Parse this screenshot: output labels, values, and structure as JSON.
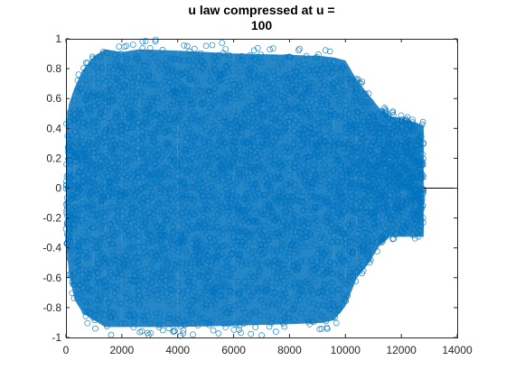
{
  "chart_data": {
    "type": "scatter",
    "title_lines": [
      "u law compressed at u =",
      "100"
    ],
    "xlabel": "",
    "ylabel": "",
    "xlim": [
      0,
      14000
    ],
    "ylim": [
      -1,
      1
    ],
    "xticks": [
      0,
      2000,
      4000,
      6000,
      8000,
      10000,
      12000,
      14000
    ],
    "xtick_labels": [
      "0",
      "2000",
      "4000",
      "6000",
      "8000",
      "10000",
      "12000",
      "14000"
    ],
    "yticks": [
      -1,
      -0.8,
      -0.6,
      -0.4,
      -0.2,
      0,
      0.2,
      0.4,
      0.6,
      0.8,
      1
    ],
    "ytick_labels": [
      "-1",
      "-0.8",
      "-0.6",
      "-0.4",
      "-0.2",
      "0",
      "0.2",
      "0.4",
      "0.6",
      "0.8",
      "1"
    ],
    "grid": false,
    "marker": "circle-open",
    "series_color": "#0072BD",
    "n_samples": 12800,
    "envelope": {
      "x": [
        0,
        100,
        300,
        600,
        1000,
        1400,
        2000,
        2600,
        4000,
        6000,
        8000,
        9200,
        9600,
        10000,
        10400,
        10800,
        11200,
        11600,
        12000,
        12400,
        12800
      ],
      "upper": [
        0.45,
        0.6,
        0.72,
        0.85,
        0.95,
        1.0,
        0.98,
        1.0,
        0.99,
        0.97,
        0.96,
        0.95,
        0.94,
        0.92,
        0.78,
        0.68,
        0.58,
        0.52,
        0.5,
        0.48,
        0.45
      ],
      "lower": [
        -0.4,
        -0.6,
        -0.8,
        -0.9,
        -0.95,
        -1.0,
        -1.0,
        -1.0,
        -1.0,
        -0.99,
        -0.98,
        -0.97,
        -0.95,
        -0.85,
        -0.65,
        -0.55,
        -0.42,
        -0.35,
        -0.35,
        -0.35,
        -0.35
      ]
    },
    "zero_line": {
      "x": [
        12800,
        14000
      ],
      "y": 0
    }
  }
}
